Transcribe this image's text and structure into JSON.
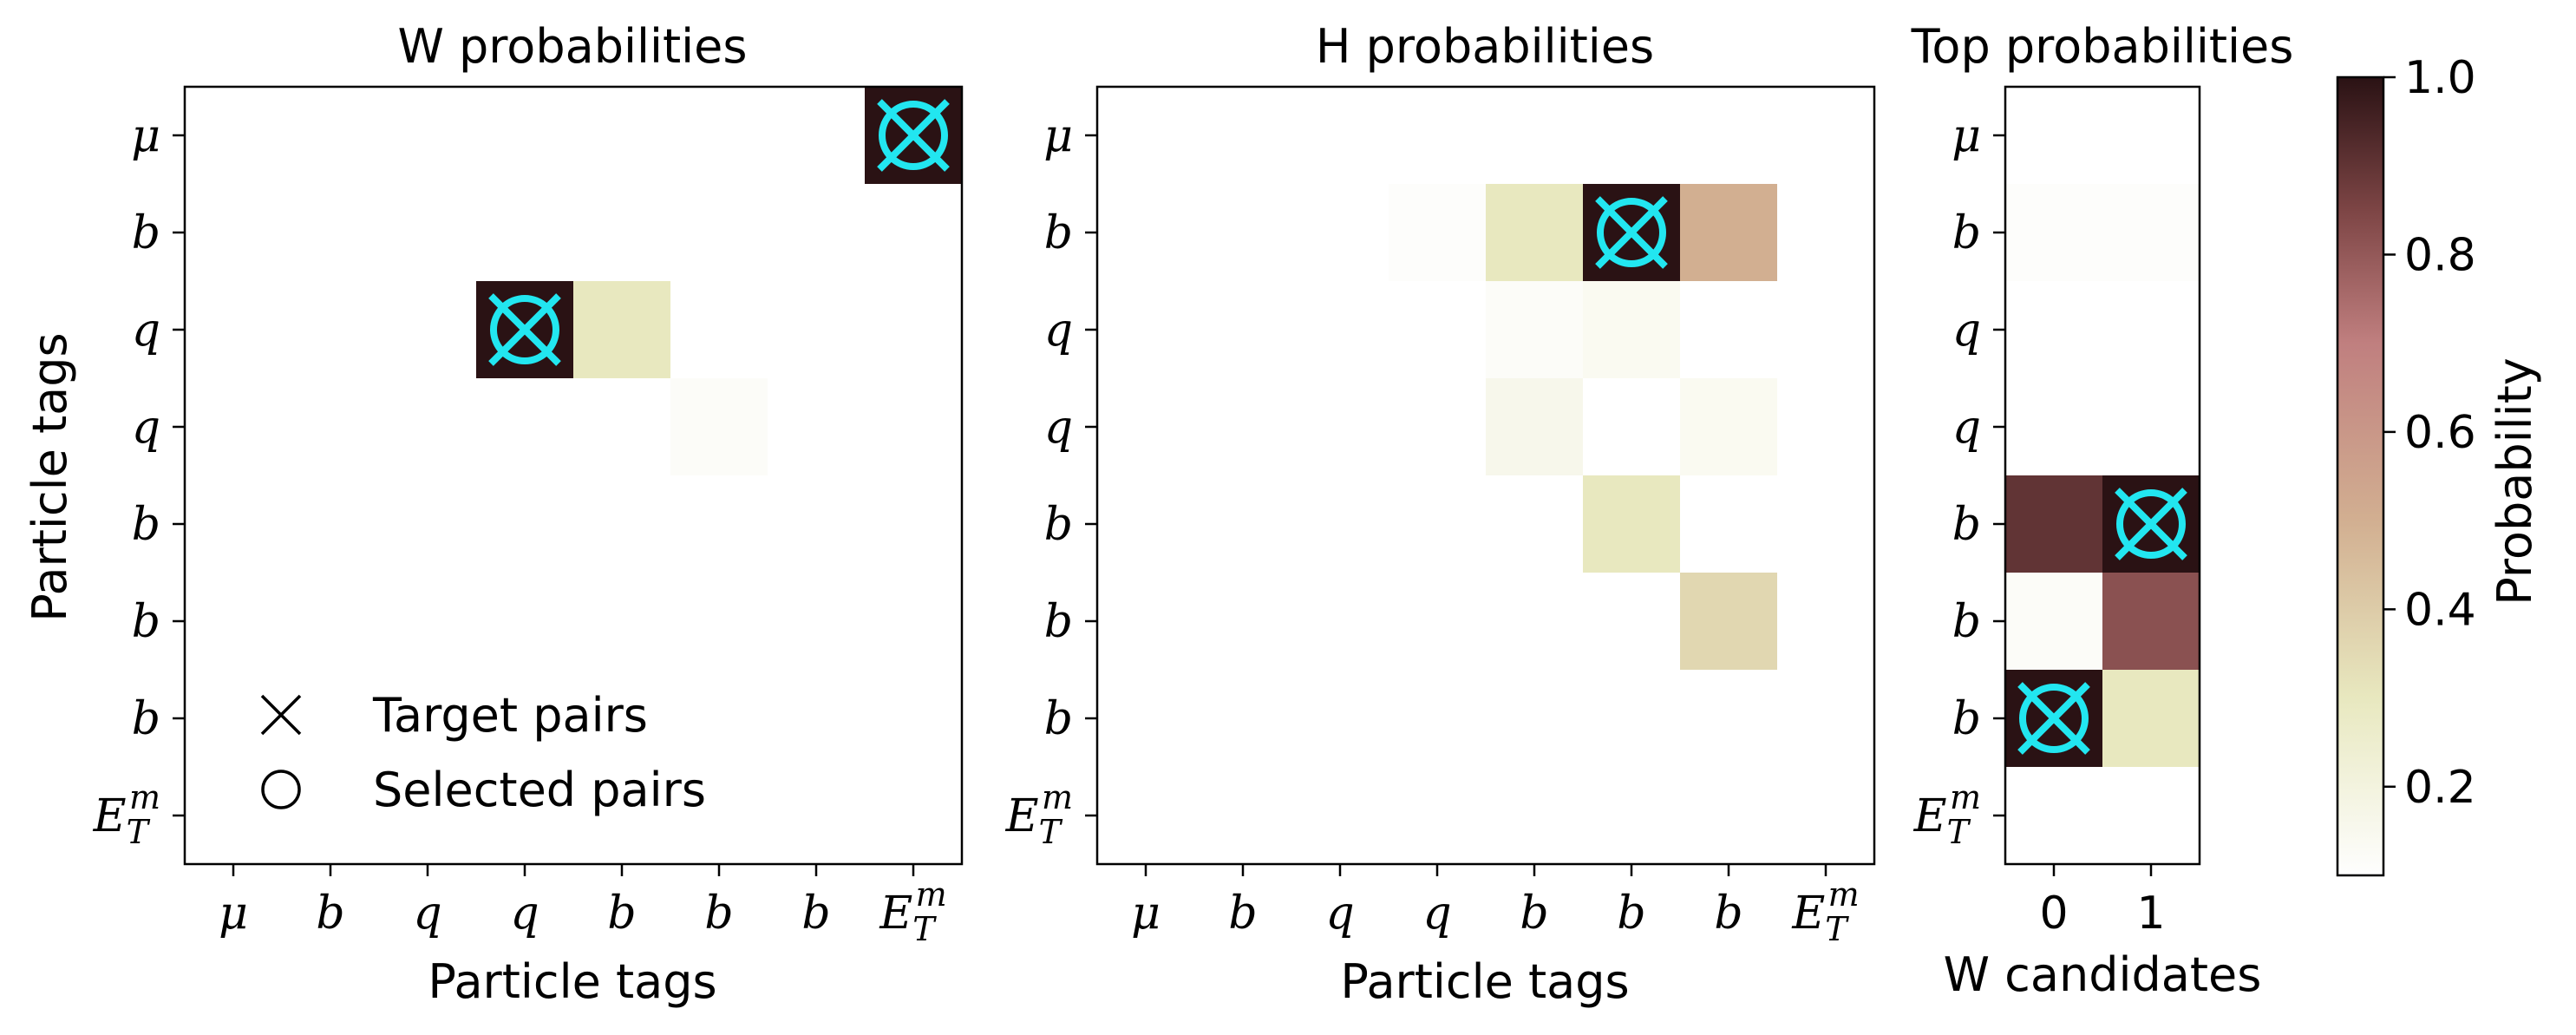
{
  "chart_data": [
    {
      "type": "heatmap",
      "title": "W probabilities",
      "xlabel": "Particle tags",
      "ylabel": "Particle tags",
      "x_tick_labels": [
        "μ",
        "b",
        "q",
        "q",
        "b",
        "b",
        "b",
        "E_T^m"
      ],
      "y_tick_labels": [
        "μ",
        "b",
        "q",
        "q",
        "b",
        "b",
        "b",
        "E_T^m"
      ],
      "cells": [
        {
          "row": 0,
          "col": 7,
          "p": 1.0
        },
        {
          "row": 2,
          "col": 3,
          "p": 1.0
        },
        {
          "row": 2,
          "col": 4,
          "p": 0.3
        },
        {
          "row": 3,
          "col": 5,
          "p": 0.12
        }
      ],
      "target_pairs": [
        [
          0,
          7
        ],
        [
          2,
          3
        ]
      ],
      "selected_pairs": [
        [
          0,
          7
        ],
        [
          2,
          3
        ]
      ],
      "legend": {
        "position": "lower-left",
        "entries": [
          "Target pairs",
          "Selected pairs"
        ]
      }
    },
    {
      "type": "heatmap",
      "title": "H probabilities",
      "xlabel": "Particle tags",
      "ylabel": "",
      "x_tick_labels": [
        "μ",
        "b",
        "q",
        "q",
        "b",
        "b",
        "b",
        "E_T^m"
      ],
      "y_tick_labels": [
        "μ",
        "b",
        "q",
        "q",
        "b",
        "b",
        "b",
        "E_T^m"
      ],
      "cells": [
        {
          "row": 1,
          "col": 3,
          "p": 0.11
        },
        {
          "row": 1,
          "col": 4,
          "p": 0.3
        },
        {
          "row": 1,
          "col": 5,
          "p": 1.0
        },
        {
          "row": 1,
          "col": 6,
          "p": 0.5
        },
        {
          "row": 2,
          "col": 4,
          "p": 0.12
        },
        {
          "row": 2,
          "col": 5,
          "p": 0.14
        },
        {
          "row": 3,
          "col": 4,
          "p": 0.16
        },
        {
          "row": 3,
          "col": 6,
          "p": 0.14
        },
        {
          "row": 4,
          "col": 5,
          "p": 0.3
        },
        {
          "row": 5,
          "col": 6,
          "p": 0.36
        }
      ],
      "target_pairs": [
        [
          1,
          5
        ]
      ],
      "selected_pairs": [
        [
          1,
          5
        ]
      ]
    },
    {
      "type": "heatmap",
      "title": "Top probabilities",
      "xlabel": "W candidates",
      "ylabel": "",
      "x_tick_labels": [
        "0",
        "1"
      ],
      "y_tick_labels": [
        "μ",
        "b",
        "q",
        "q",
        "b",
        "b",
        "b",
        "E_T^m"
      ],
      "cells": [
        {
          "row": 1,
          "col": 0,
          "p": 0.11
        },
        {
          "row": 1,
          "col": 1,
          "p": 0.11
        },
        {
          "row": 4,
          "col": 0,
          "p": 0.9
        },
        {
          "row": 4,
          "col": 1,
          "p": 1.0
        },
        {
          "row": 5,
          "col": 0,
          "p": 0.12
        },
        {
          "row": 5,
          "col": 1,
          "p": 0.82
        },
        {
          "row": 6,
          "col": 0,
          "p": 1.0
        },
        {
          "row": 6,
          "col": 1,
          "p": 0.3
        }
      ],
      "target_pairs": [
        [
          4,
          1
        ],
        [
          6,
          0
        ]
      ],
      "selected_pairs": [
        [
          4,
          1
        ],
        [
          6,
          0
        ]
      ]
    }
  ],
  "colorbar": {
    "label": "Probability",
    "ticks": [
      "0.2",
      "0.4",
      "0.6",
      "0.8",
      "1.0"
    ],
    "tick_values": [
      0.2,
      0.4,
      0.6,
      0.8,
      1.0
    ],
    "range": [
      0.1,
      1.0
    ]
  },
  "colors": {
    "marker": "#22e6f0",
    "colormap_stops": [
      [
        0.1,
        "#fefefe"
      ],
      [
        0.3,
        "#e8e8bf"
      ],
      [
        0.5,
        "#d2af91"
      ],
      [
        0.7,
        "#c07f7f"
      ],
      [
        0.85,
        "#7d4545"
      ],
      [
        1.0,
        "#2a1214"
      ]
    ]
  }
}
